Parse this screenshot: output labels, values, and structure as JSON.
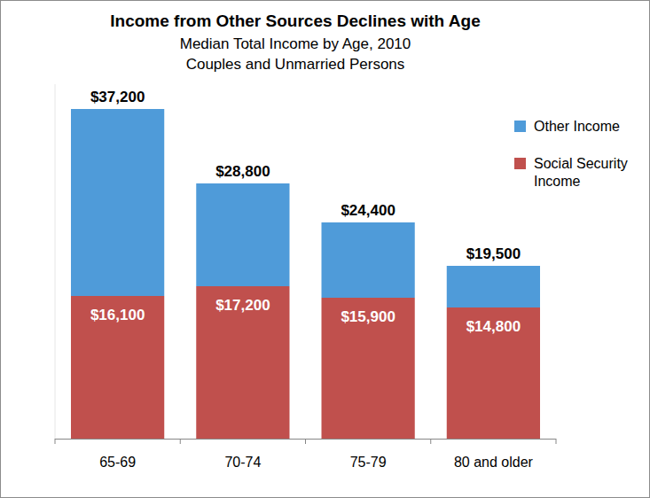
{
  "chart_data": {
    "type": "bar",
    "title": "Income from Other Sources Declines with Age",
    "subtitle": [
      "Median Total Income by Age, 2010",
      "Couples and Unmarried Persons"
    ],
    "categories": [
      "65-69",
      "70-74",
      "75-79",
      "80 and older"
    ],
    "series": [
      {
        "name": "Social Security Income",
        "color": "#c0504d",
        "values": [
          16100,
          17200,
          15900,
          14800
        ],
        "value_labels": [
          "$16,100",
          "$17,200",
          "$15,900",
          "$14,800"
        ]
      },
      {
        "name": "Other Income",
        "color": "#4f9bd9",
        "values": [
          21100,
          11600,
          8500,
          4700
        ]
      }
    ],
    "total_labels": [
      "$37,200",
      "$28,800",
      "$24,400",
      "$19,500"
    ],
    "stacked": true,
    "data_labels": true,
    "legend": "right",
    "grid": false,
    "tick_labels": "x",
    "ylim": [
      0,
      40000
    ]
  }
}
